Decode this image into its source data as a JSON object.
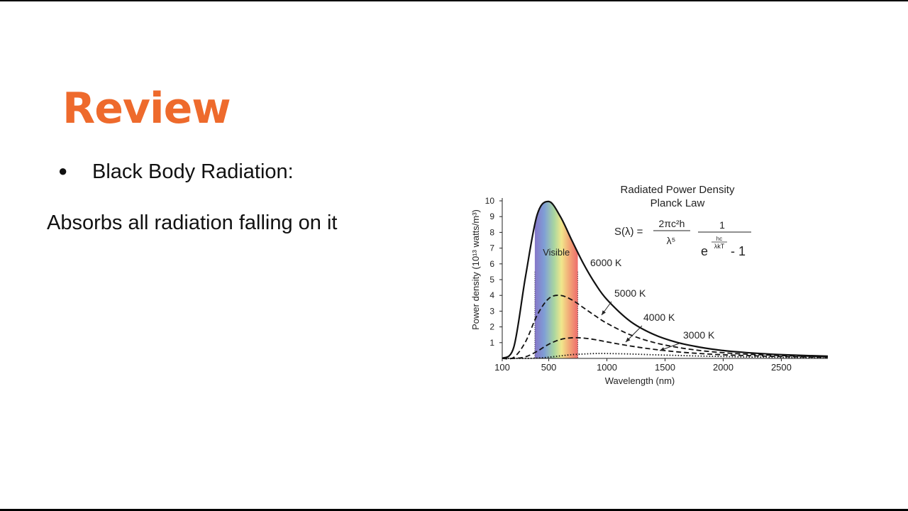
{
  "slide": {
    "title": "Review",
    "bullet": "Black Body Radiation:",
    "body": "Absorbs all radiation falling on it"
  },
  "chart_data": {
    "type": "line",
    "title": "Radiated Power Density",
    "subtitle": "Planck Law",
    "formula": {
      "lhs": "S(λ) =",
      "num1": "2πc²h",
      "den1": "λ⁵",
      "num2": "1",
      "base": "e",
      "exp_num": "hc",
      "exp_den": "λkT",
      "tail": "- 1"
    },
    "x_label": "Wavelength (nm)",
    "y_label": "Power density (10¹³ watts/m³)",
    "visible_label": "Visible",
    "visible_range": [
      380,
      750
    ],
    "x": [
      100,
      200,
      300,
      400,
      500,
      600,
      700,
      800,
      900,
      1000,
      1200,
      1400,
      1600,
      1800,
      2000,
      2200,
      2500,
      2900
    ],
    "series": [
      {
        "name": "6000 K",
        "color": "#111111",
        "style": "solid",
        "values": [
          0,
          0.73,
          5.19,
          9.11,
          9.96,
          9.0,
          7.47,
          5.99,
          4.74,
          3.74,
          2.36,
          1.53,
          1.02,
          0.71,
          0.5,
          0.37,
          0.24,
          0.14
        ]
      },
      {
        "name": "5000 K",
        "color": "#111111",
        "style": "dashed",
        "values": [
          0,
          0.07,
          1.05,
          2.74,
          3.8,
          4.0,
          3.71,
          3.21,
          2.7,
          2.23,
          1.5,
          1.02,
          0.71,
          0.5,
          0.36,
          0.27,
          0.18,
          0.11
        ]
      },
      {
        "name": "4000 K",
        "color": "#111111",
        "style": "dashed",
        "values": [
          0,
          0,
          0.1,
          0.45,
          0.9,
          1.2,
          1.31,
          1.29,
          1.19,
          1.05,
          0.79,
          0.58,
          0.42,
          0.31,
          0.23,
          0.18,
          0.12,
          0.07
        ]
      },
      {
        "name": "3000 K",
        "color": "#111111",
        "style": "dotted",
        "values": [
          0,
          0,
          0,
          0.02,
          0.08,
          0.16,
          0.24,
          0.28,
          0.31,
          0.31,
          0.28,
          0.23,
          0.19,
          0.15,
          0.12,
          0.09,
          0.07,
          0.04
        ]
      }
    ],
    "xlim": [
      100,
      2900
    ],
    "ylim": [
      0,
      10
    ],
    "xticks": [
      100,
      500,
      1000,
      1500,
      2000,
      2500
    ],
    "yticks": [
      1,
      2,
      3,
      4,
      5,
      6,
      7,
      8,
      9,
      10
    ]
  }
}
